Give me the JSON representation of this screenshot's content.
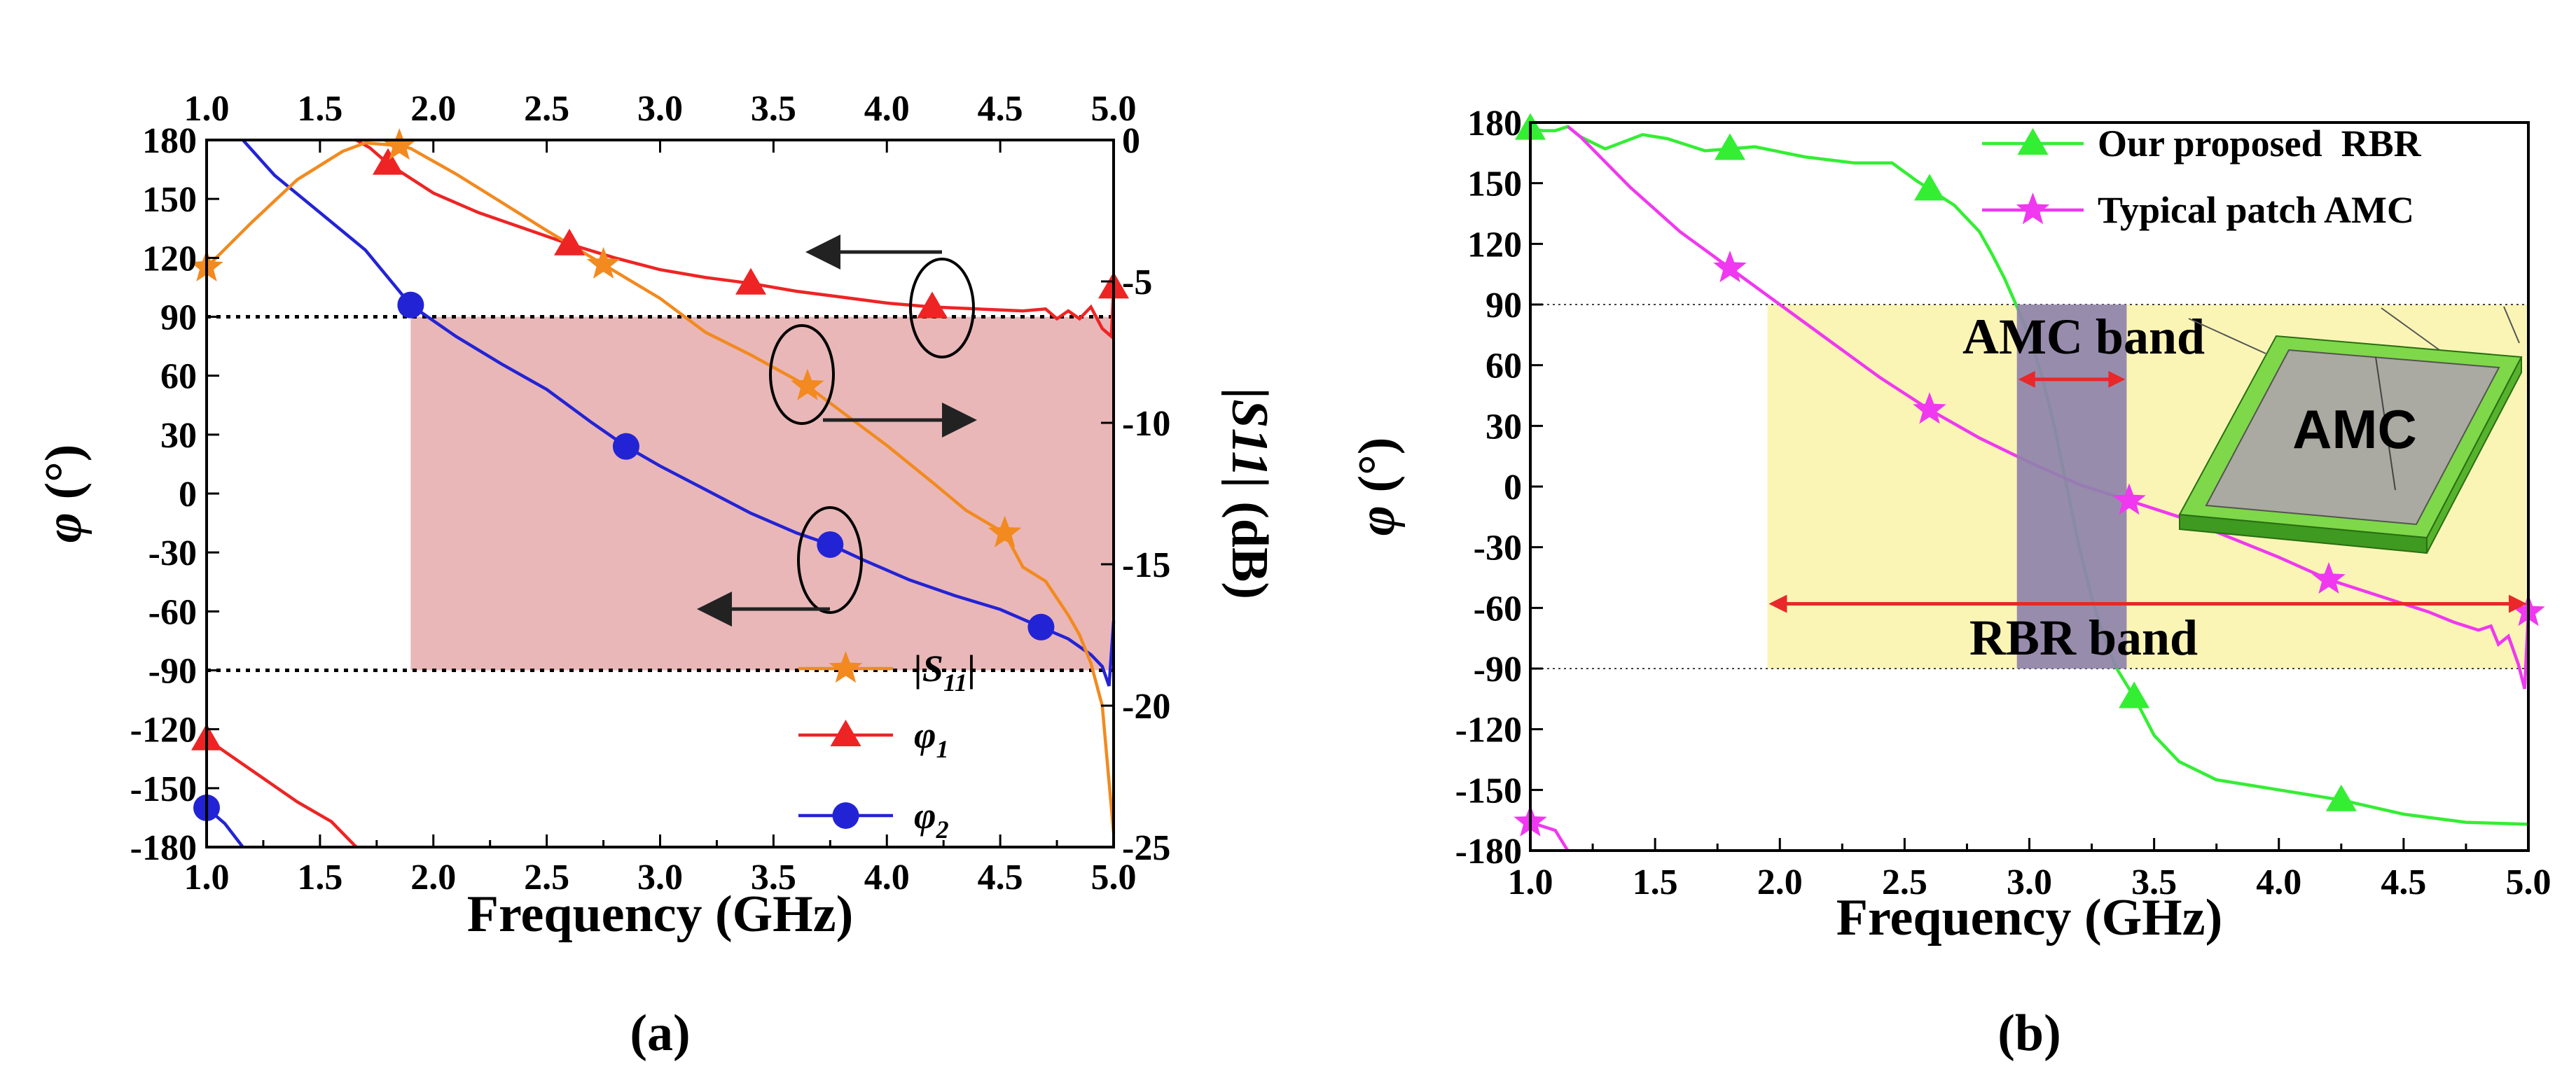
{
  "colors": {
    "s11": "#f28a1f",
    "phi1": "#ee2424",
    "phi2": "#2323d6",
    "rbr": "#33ee33",
    "patch": "#f038f0",
    "band_a": "#e9b7b7",
    "rbr_band": "#fbf5b5",
    "amc_band": "#8f82ad",
    "arrow_red": "#e8282a"
  },
  "chart_data": [
    {
      "panel": "(a)",
      "type": "line",
      "title": "",
      "xlabel": "Frequency (GHz)",
      "ylabel": "φ (°)",
      "ylabel_symbol": "φ",
      "ylabel_unit": "(°)",
      "y2label_symbol": "|S11|",
      "y2label_unit": "(dB)",
      "xlim": [
        1.0,
        5.0
      ],
      "ylim": [
        -180,
        180
      ],
      "y2lim": [
        -25,
        0
      ],
      "x_ticks": [
        "1.0",
        "1.5",
        "2.0",
        "2.5",
        "3.0",
        "3.5",
        "4.0",
        "4.5",
        "5.0"
      ],
      "top_ticks": [
        "1.0",
        "1.5",
        "2.0",
        "2.5",
        "3.0",
        "3.5",
        "4.0",
        "4.5",
        "5.0"
      ],
      "y_ticks": [
        "180",
        "150",
        "120",
        "90",
        "60",
        "30",
        "0",
        "-30",
        "-60",
        "-90",
        "-120",
        "-150",
        "-180"
      ],
      "y2_ticks": [
        "0",
        "-5",
        "-10",
        "-15",
        "-20",
        "-25"
      ],
      "reference_lines": [
        90,
        -90
      ],
      "shaded_band": {
        "x": [
          1.9,
          5.0
        ],
        "y": [
          -90,
          90
        ]
      },
      "legend": {
        "position": "bottom-right",
        "entries": [
          {
            "label": "|S11|",
            "label_main": "|S",
            "label_sub": "11",
            "label_end": "|",
            "marker": "star",
            "series": "s11"
          },
          {
            "label": "φ1",
            "label_main": "φ",
            "label_sub": "1",
            "marker": "triangle",
            "series": "phi1"
          },
          {
            "label": "φ2",
            "label_main": "φ",
            "label_sub": "2",
            "marker": "circle",
            "series": "phi2"
          }
        ]
      },
      "series": [
        {
          "name": "phi1",
          "axis": "left",
          "marker": "triangle",
          "points": [
            [
              1.0,
              -125
            ],
            [
              1.2,
              -141
            ],
            [
              1.4,
              -157
            ],
            [
              1.55,
              -167
            ],
            [
              1.66,
              -180
            ],
            [
              1.6601,
              180
            ],
            [
              1.72,
              176
            ],
            [
              1.8,
              168
            ],
            [
              2.0,
              153
            ],
            [
              2.2,
              143
            ],
            [
              2.4,
              135
            ],
            [
              2.6,
              127
            ],
            [
              2.8,
              120
            ],
            [
              3.0,
              114
            ],
            [
              3.2,
              110
            ],
            [
              3.4,
              107
            ],
            [
              3.6,
              103
            ],
            [
              3.8,
              100
            ],
            [
              4.0,
              97
            ],
            [
              4.2,
              95
            ],
            [
              4.4,
              94
            ],
            [
              4.6,
              93
            ],
            [
              4.7,
              94
            ],
            [
              4.75,
              89
            ],
            [
              4.8,
              93
            ],
            [
              4.85,
              89
            ],
            [
              4.9,
              95
            ],
            [
              4.95,
              84
            ],
            [
              4.99,
              80
            ],
            [
              5.0,
              105
            ]
          ],
          "markers_x": [
            1.0,
            1.8,
            2.6,
            3.4,
            4.2,
            5.0
          ]
        },
        {
          "name": "phi2",
          "axis": "left",
          "marker": "circle",
          "points": [
            [
              1.0,
              -160
            ],
            [
              1.08,
              -168
            ],
            [
              1.16,
              -180
            ],
            [
              1.1601,
              180
            ],
            [
              1.3,
              162
            ],
            [
              1.5,
              143
            ],
            [
              1.7,
              124
            ],
            [
              1.9,
              96
            ],
            [
              2.1,
              80
            ],
            [
              2.3,
              66
            ],
            [
              2.5,
              53
            ],
            [
              2.7,
              36
            ],
            [
              2.85,
              24
            ],
            [
              3.0,
              14
            ],
            [
              3.2,
              2
            ],
            [
              3.4,
              -10
            ],
            [
              3.6,
              -20
            ],
            [
              3.75,
              -26
            ],
            [
              3.9,
              -34
            ],
            [
              4.1,
              -44
            ],
            [
              4.3,
              -52
            ],
            [
              4.5,
              -59
            ],
            [
              4.68,
              -68
            ],
            [
              4.8,
              -74
            ],
            [
              4.9,
              -82
            ],
            [
              4.95,
              -88
            ],
            [
              4.98,
              -98
            ],
            [
              5.0,
              -65
            ]
          ],
          "markers_x": [
            1.0,
            1.9,
            2.85,
            3.75,
            4.68
          ]
        },
        {
          "name": "s11",
          "axis": "right",
          "marker": "star",
          "points": [
            [
              1.0,
              -4.5
            ],
            [
              1.2,
              -2.9
            ],
            [
              1.4,
              -1.4
            ],
            [
              1.6,
              -0.4
            ],
            [
              1.7,
              -0.1
            ],
            [
              1.85,
              -0.2
            ],
            [
              1.9,
              -0.3
            ],
            [
              2.1,
              -1.2
            ],
            [
              2.3,
              -2.2
            ],
            [
              2.5,
              -3.2
            ],
            [
              2.75,
              -4.4
            ],
            [
              3.0,
              -5.6
            ],
            [
              3.2,
              -6.8
            ],
            [
              3.4,
              -7.6
            ],
            [
              3.65,
              -8.7
            ],
            [
              3.85,
              -9.9
            ],
            [
              4.0,
              -10.8
            ],
            [
              4.2,
              -12.1
            ],
            [
              4.35,
              -13.1
            ],
            [
              4.52,
              -13.9
            ],
            [
              4.6,
              -15.1
            ],
            [
              4.7,
              -15.6
            ],
            [
              4.75,
              -16.2
            ],
            [
              4.8,
              -16.8
            ],
            [
              4.85,
              -17.5
            ],
            [
              4.9,
              -18.5
            ],
            [
              4.95,
              -20.0
            ],
            [
              5.0,
              -24.5
            ]
          ],
          "markers_x": [
            1.0,
            1.85,
            2.75,
            3.65,
            4.52
          ]
        }
      ],
      "annotations": [
        {
          "type": "ellipse-arrow",
          "target": "phi1",
          "direction": "left"
        },
        {
          "type": "ellipse-arrow",
          "target": "s11",
          "direction": "right"
        },
        {
          "type": "ellipse-arrow",
          "target": "phi2",
          "direction": "left"
        }
      ]
    },
    {
      "panel": "(b)",
      "type": "line",
      "title": "",
      "xlabel": "Frequency (GHz)",
      "ylabel": "φ (°)",
      "ylabel_symbol": "φ",
      "ylabel_unit": "(°)",
      "xlim": [
        1.0,
        5.0
      ],
      "ylim": [
        -180,
        180
      ],
      "x_ticks": [
        "1.0",
        "1.5",
        "2.0",
        "2.5",
        "3.0",
        "3.5",
        "4.0",
        "4.5",
        "5.0"
      ],
      "y_ticks": [
        "180",
        "150",
        "120",
        "90",
        "60",
        "30",
        "0",
        "-30",
        "-60",
        "-90",
        "-120",
        "-150",
        "-180"
      ],
      "reference_lines": [
        90,
        -90
      ],
      "rbr_band": {
        "label": "RBR band",
        "x": [
          1.95,
          5.0
        ],
        "y": [
          -90,
          90
        ]
      },
      "amc_band": {
        "label": "AMC band",
        "x": [
          2.95,
          3.39
        ],
        "y": [
          -90,
          90
        ]
      },
      "inset_label": "AMC",
      "legend": {
        "position": "top-right",
        "entries": [
          {
            "label": "Our proposed  RBR",
            "marker": "triangle",
            "series": "rbr"
          },
          {
            "label": "Typical patch AMC",
            "marker": "star",
            "series": "patch"
          }
        ]
      },
      "series": [
        {
          "name": "rbr",
          "marker": "triangle",
          "points": [
            [
              1.0,
              177
            ],
            [
              1.05,
              176
            ],
            [
              1.1,
              176
            ],
            [
              1.15,
              178
            ],
            [
              1.2,
              173
            ],
            [
              1.3,
              167
            ],
            [
              1.45,
              174
            ],
            [
              1.55,
              172
            ],
            [
              1.7,
              166
            ],
            [
              1.9,
              168
            ],
            [
              2.1,
              163
            ],
            [
              2.3,
              160
            ],
            [
              2.45,
              160
            ],
            [
              2.55,
              151
            ],
            [
              2.7,
              139
            ],
            [
              2.8,
              126
            ],
            [
              2.85,
              115
            ],
            [
              2.9,
              103
            ],
            [
              2.95,
              89
            ],
            [
              3.0,
              74
            ],
            [
              3.05,
              55
            ],
            [
              3.1,
              30
            ],
            [
              3.15,
              0
            ],
            [
              3.2,
              -30
            ],
            [
              3.25,
              -55
            ],
            [
              3.3,
              -75
            ],
            [
              3.35,
              -90
            ],
            [
              3.42,
              -104
            ],
            [
              3.5,
              -123
            ],
            [
              3.6,
              -136
            ],
            [
              3.75,
              -145
            ],
            [
              4.0,
              -150
            ],
            [
              4.25,
              -155
            ],
            [
              4.5,
              -162
            ],
            [
              4.75,
              -166
            ],
            [
              5.0,
              -167
            ]
          ],
          "markers_x": [
            1.0,
            1.8,
            2.6,
            3.42,
            4.25
          ]
        },
        {
          "name": "patch",
          "marker": "star",
          "points": [
            [
              1.0,
              -166
            ],
            [
              1.1,
              -170
            ],
            [
              1.15,
              -180
            ],
            [
              1.1501,
              178
            ],
            [
              1.2,
              173
            ],
            [
              1.4,
              148
            ],
            [
              1.6,
              126
            ],
            [
              1.8,
              108
            ],
            [
              2.0,
              90
            ],
            [
              2.2,
              72
            ],
            [
              2.4,
              54
            ],
            [
              2.6,
              38
            ],
            [
              2.8,
              24
            ],
            [
              3.0,
              12
            ],
            [
              3.2,
              1
            ],
            [
              3.4,
              -7
            ],
            [
              3.6,
              -15
            ],
            [
              3.8,
              -25
            ],
            [
              4.0,
              -35
            ],
            [
              4.2,
              -46
            ],
            [
              4.4,
              -54
            ],
            [
              4.6,
              -62
            ],
            [
              4.7,
              -67
            ],
            [
              4.8,
              -71
            ],
            [
              4.85,
              -69
            ],
            [
              4.88,
              -78
            ],
            [
              4.92,
              -74
            ],
            [
              4.96,
              -88
            ],
            [
              4.985,
              -100
            ],
            [
              5.0,
              -62
            ]
          ],
          "markers_x": [
            1.0,
            1.8,
            2.6,
            3.4,
            4.2,
            5.0
          ]
        }
      ]
    }
  ]
}
